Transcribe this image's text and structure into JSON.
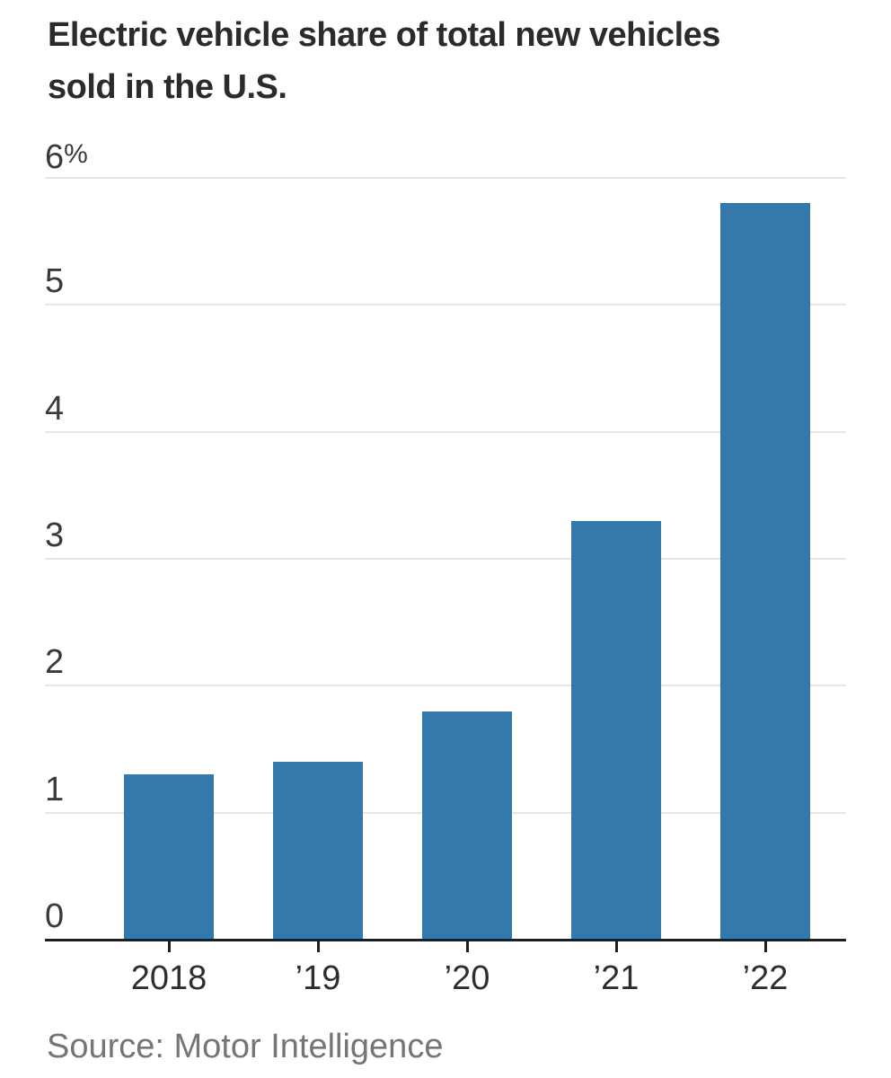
{
  "header": {
    "title_lines": [
      "Electric vehicle share of total new vehicles",
      "sold in the U.S."
    ]
  },
  "chart_data": {
    "type": "bar",
    "title": "Electric vehicle share of total new vehicles sold in the U.S.",
    "categories": [
      "2018",
      "’19",
      "’20",
      "’21",
      "’22"
    ],
    "values": [
      1.3,
      1.4,
      1.8,
      3.3,
      5.8
    ],
    "unit": "%",
    "xlabel": "",
    "ylabel": "",
    "ylim": [
      0,
      6
    ],
    "yticks": [
      {
        "value": 6,
        "label": "6%"
      },
      {
        "value": 5,
        "label": "5"
      },
      {
        "value": 4,
        "label": "4"
      },
      {
        "value": 3,
        "label": "3"
      },
      {
        "value": 2,
        "label": "2"
      },
      {
        "value": 1,
        "label": "1"
      },
      {
        "value": 0,
        "label": "0"
      }
    ],
    "grid": "horizontal",
    "legend": "none",
    "bar_color": "#3478ac"
  },
  "colors": {
    "bar": "#3478ac",
    "gridline": "#e6e6e6",
    "axis": "#1f1f1f",
    "title_text": "#2b2b2b",
    "tick_text": "#3a3a3a",
    "source_text": "#757575"
  },
  "footer": {
    "source": "Source: Motor Intelligence"
  }
}
